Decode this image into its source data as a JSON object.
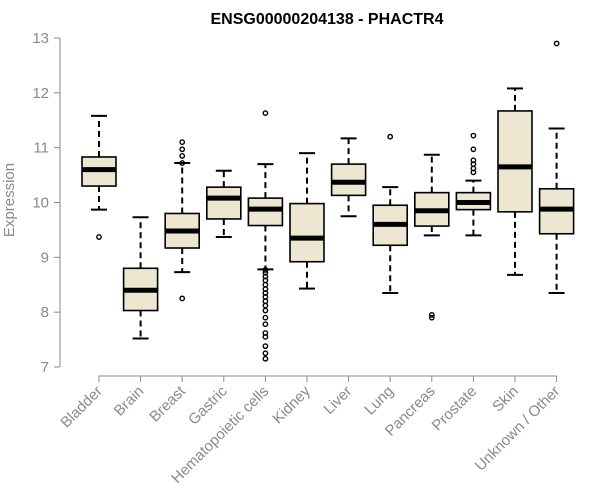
{
  "chart_data": {
    "type": "boxplot",
    "title": "ENSG00000204138 - PHACTR4",
    "xlabel": "",
    "ylabel": "Expression",
    "ylim": [
      7,
      13
    ],
    "yticks": [
      7,
      8,
      9,
      10,
      11,
      12,
      13
    ],
    "box_fill": "#ede6d0",
    "categories": [
      "Bladder",
      "Brain",
      "Breast",
      "Gastric",
      "Hematopoietic cells",
      "Kidney",
      "Liver",
      "Lung",
      "Pancreas",
      "Prostate",
      "Skin",
      "Unknown / Other"
    ],
    "boxes": [
      {
        "name": "Bladder",
        "whisker_low": 9.87,
        "q1": 10.3,
        "median": 10.6,
        "q3": 10.83,
        "whisker_high": 11.58,
        "outliers": [
          9.37
        ]
      },
      {
        "name": "Brain",
        "whisker_low": 7.52,
        "q1": 8.03,
        "median": 8.4,
        "q3": 8.8,
        "whisker_high": 9.73,
        "outliers": []
      },
      {
        "name": "Breast",
        "whisker_low": 8.73,
        "q1": 9.17,
        "median": 9.48,
        "q3": 9.8,
        "whisker_high": 10.72,
        "outliers": [
          8.25,
          10.72,
          10.85,
          10.97,
          11.1
        ]
      },
      {
        "name": "Gastric",
        "whisker_low": 9.37,
        "q1": 9.7,
        "median": 10.08,
        "q3": 10.28,
        "whisker_high": 10.58,
        "outliers": []
      },
      {
        "name": "Hematopoietic cells",
        "whisker_low": 8.78,
        "q1": 9.58,
        "median": 9.88,
        "q3": 10.08,
        "whisker_high": 10.7,
        "outliers": [
          7.15,
          7.25,
          7.38,
          7.55,
          7.62,
          7.78,
          7.9,
          8.03,
          8.12,
          8.2,
          8.28,
          8.35,
          8.42,
          8.5,
          8.58,
          8.65,
          8.72,
          8.77,
          11.63
        ]
      },
      {
        "name": "Kidney",
        "whisker_low": 8.43,
        "q1": 8.92,
        "median": 9.35,
        "q3": 9.98,
        "whisker_high": 10.9,
        "outliers": []
      },
      {
        "name": "Liver",
        "whisker_low": 9.75,
        "q1": 10.13,
        "median": 10.37,
        "q3": 10.7,
        "whisker_high": 11.17,
        "outliers": []
      },
      {
        "name": "Lung",
        "whisker_low": 8.35,
        "q1": 9.22,
        "median": 9.6,
        "q3": 9.95,
        "whisker_high": 10.28,
        "outliers": [
          11.2
        ]
      },
      {
        "name": "Pancreas",
        "whisker_low": 9.4,
        "q1": 9.57,
        "median": 9.85,
        "q3": 10.18,
        "whisker_high": 10.87,
        "outliers": [
          7.9,
          7.95
        ]
      },
      {
        "name": "Prostate",
        "whisker_low": 9.4,
        "q1": 9.87,
        "median": 10.0,
        "q3": 10.18,
        "whisker_high": 10.4,
        "outliers": [
          10.55,
          10.62,
          10.7,
          10.77,
          10.97,
          11.22
        ]
      },
      {
        "name": "Skin",
        "whisker_low": 8.68,
        "q1": 9.83,
        "median": 10.65,
        "q3": 11.67,
        "whisker_high": 12.08,
        "outliers": []
      },
      {
        "name": "Unknown / Other",
        "whisker_low": 8.35,
        "q1": 9.43,
        "median": 9.88,
        "q3": 10.25,
        "whisker_high": 11.35,
        "outliers": [
          12.9
        ]
      }
    ]
  }
}
